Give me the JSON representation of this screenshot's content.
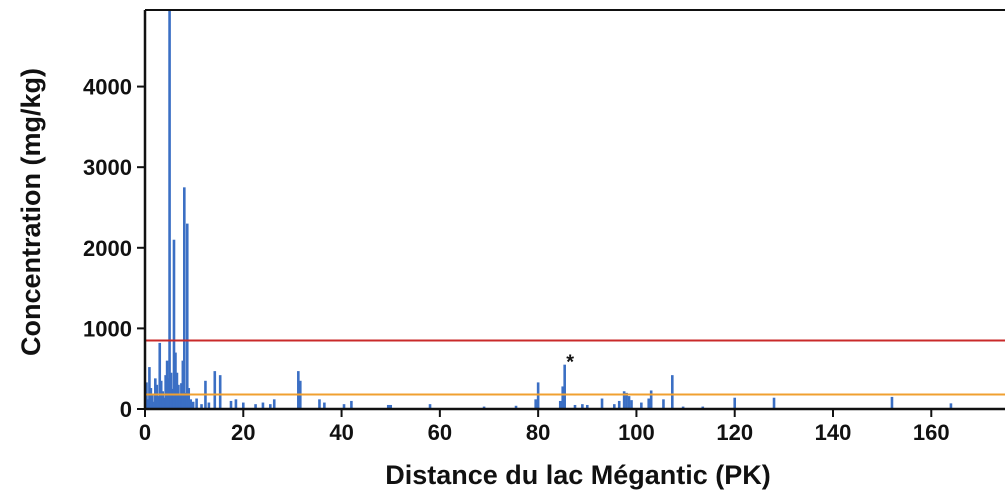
{
  "chart_data": {
    "type": "bar",
    "title": "",
    "xlabel": "Distance du lac Mégantic (PK)",
    "ylabel": "Concentration (mg/kg)",
    "xlim": [
      0,
      175
    ],
    "ylim": [
      0,
      4950
    ],
    "x_ticks": [
      "0",
      "20",
      "40",
      "60",
      "80",
      "100",
      "120",
      "140",
      "160"
    ],
    "y_ticks": [
      "0",
      "1000",
      "2000",
      "3000",
      "4000"
    ],
    "grid": false,
    "legend": "none",
    "colors": {
      "bars": "#3b6fc4",
      "red_line": "#c92a2a",
      "orange_line": "#f0a030",
      "axis": "#111111"
    },
    "reference_lines": [
      {
        "value": 850,
        "color": "#c92a2a"
      },
      {
        "value": 180,
        "color": "#f0a030"
      }
    ],
    "annotations": [
      {
        "text": "*",
        "x": 85.5,
        "y": 600
      }
    ],
    "points": [
      [
        0.3,
        330
      ],
      [
        0.6,
        120
      ],
      [
        0.9,
        520
      ],
      [
        1.2,
        260
      ],
      [
        1.5,
        180
      ],
      [
        1.8,
        90
      ],
      [
        2.1,
        380
      ],
      [
        2.4,
        300
      ],
      [
        2.7,
        160
      ],
      [
        3.0,
        820
      ],
      [
        3.3,
        350
      ],
      [
        3.6,
        220
      ],
      [
        3.9,
        140
      ],
      [
        4.2,
        420
      ],
      [
        4.5,
        600
      ],
      [
        4.8,
        380
      ],
      [
        5.0,
        4950
      ],
      [
        5.3,
        450
      ],
      [
        5.6,
        250
      ],
      [
        5.9,
        2100
      ],
      [
        6.2,
        700
      ],
      [
        6.5,
        450
      ],
      [
        6.8,
        300
      ],
      [
        7.1,
        180
      ],
      [
        7.4,
        320
      ],
      [
        7.7,
        600
      ],
      [
        8.0,
        2750
      ],
      [
        8.3,
        200
      ],
      [
        8.6,
        2300
      ],
      [
        8.9,
        260
      ],
      [
        9.3,
        120
      ],
      [
        9.8,
        90
      ],
      [
        10.5,
        130
      ],
      [
        11.5,
        60
      ],
      [
        12.3,
        350
      ],
      [
        13.0,
        80
      ],
      [
        14.2,
        470
      ],
      [
        15.3,
        420
      ],
      [
        17.5,
        100
      ],
      [
        18.5,
        120
      ],
      [
        20.0,
        80
      ],
      [
        22.5,
        60
      ],
      [
        24.0,
        80
      ],
      [
        25.5,
        60
      ],
      [
        26.3,
        120
      ],
      [
        31.2,
        470
      ],
      [
        31.6,
        350
      ],
      [
        35.5,
        120
      ],
      [
        36.5,
        80
      ],
      [
        40.5,
        60
      ],
      [
        42.0,
        100
      ],
      [
        49.5,
        50
      ],
      [
        50.0,
        50
      ],
      [
        58.0,
        60
      ],
      [
        69.0,
        30
      ],
      [
        75.5,
        40
      ],
      [
        79.5,
        120
      ],
      [
        80.0,
        330
      ],
      [
        84.5,
        100
      ],
      [
        85.0,
        280
      ],
      [
        85.4,
        550
      ],
      [
        87.5,
        50
      ],
      [
        89.0,
        60
      ],
      [
        90.0,
        50
      ],
      [
        93.0,
        130
      ],
      [
        95.5,
        60
      ],
      [
        96.5,
        100
      ],
      [
        97.5,
        220
      ],
      [
        98.0,
        200
      ],
      [
        98.5,
        160
      ],
      [
        99.0,
        110
      ],
      [
        101.0,
        80
      ],
      [
        102.5,
        130
      ],
      [
        103.0,
        230
      ],
      [
        105.5,
        120
      ],
      [
        107.3,
        420
      ],
      [
        109.5,
        30
      ],
      [
        113.5,
        30
      ],
      [
        120.0,
        140
      ],
      [
        128.0,
        140
      ],
      [
        152.0,
        150
      ],
      [
        164.0,
        70
      ]
    ]
  }
}
